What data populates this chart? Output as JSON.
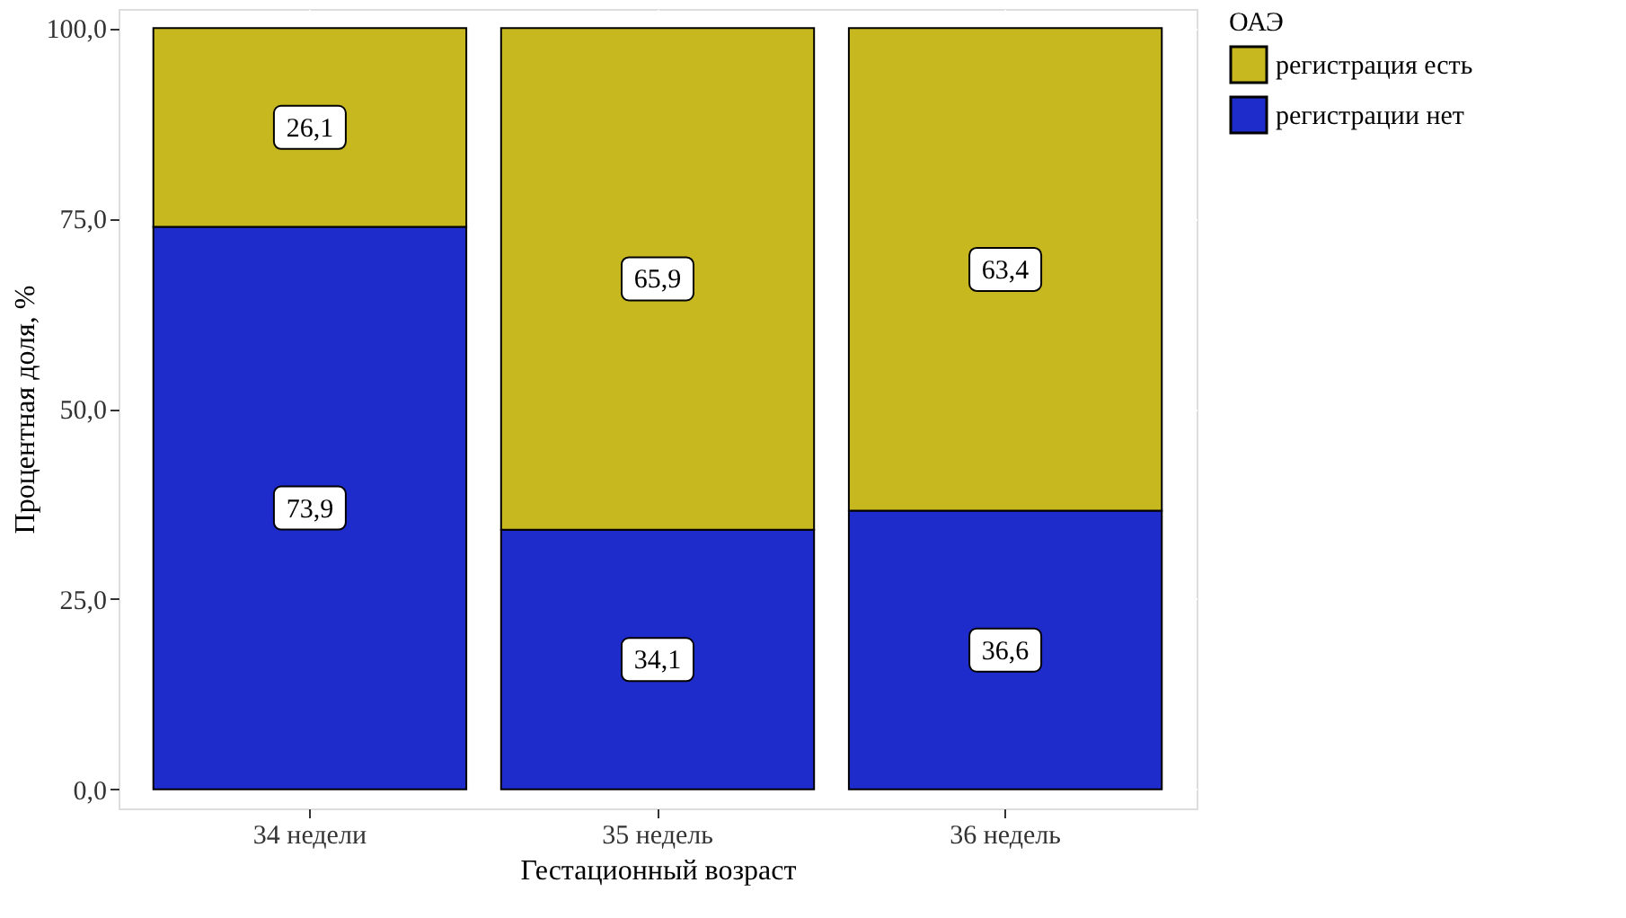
{
  "chart_data": {
    "type": "bar",
    "stacked": true,
    "xlabel": "Гестационный возраст",
    "ylabel": "Процентная доля, %",
    "legend_title": "ОАЭ",
    "legend": "right",
    "grid": true,
    "categories": [
      "34 недели",
      "35 недель",
      "36 недель"
    ],
    "ylim": [
      -2.5,
      102.5
    ],
    "yticks": [
      {
        "value": 0,
        "label": "0,0"
      },
      {
        "value": 25,
        "label": "25,0"
      },
      {
        "value": 50,
        "label": "50,0"
      },
      {
        "value": 75,
        "label": "75,0"
      },
      {
        "value": 100,
        "label": "100,0"
      }
    ],
    "series": [
      {
        "name": "регистрации нет",
        "color": "#1f2ccc",
        "values": [
          73.9,
          34.1,
          36.6
        ],
        "value_labels": [
          "73,9",
          "34,1",
          "36,6"
        ]
      },
      {
        "name": "регистрация есть",
        "color": "#c8b820",
        "values": [
          26.1,
          65.9,
          63.4
        ],
        "value_labels": [
          "26,1",
          "65,9",
          "63,4"
        ]
      }
    ]
  }
}
